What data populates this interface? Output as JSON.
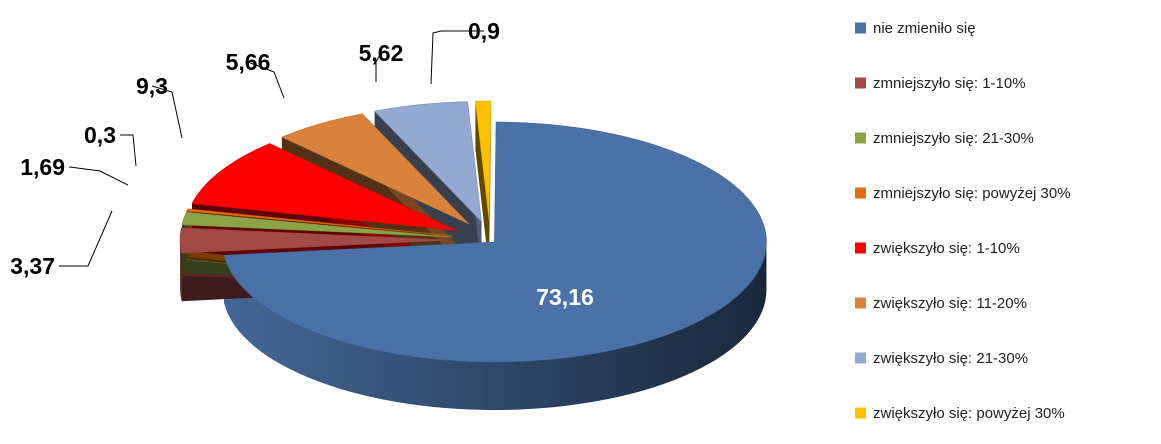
{
  "chart_data": {
    "type": "pie",
    "variant": "3d-exploded",
    "title": "",
    "legend_position": "right",
    "slices": [
      {
        "label": "nie zmieniło się",
        "value": 73.16,
        "display": "73,16",
        "color": "#4A72A8"
      },
      {
        "label": "zmniejszyło się: 1-10%",
        "value": 3.37,
        "display": "3,37",
        "color": "#A34A47"
      },
      {
        "label": "zmniejszyło się: 21-30%",
        "value": 1.69,
        "display": "1,69",
        "color": "#8BA445"
      },
      {
        "label": "zmniejszyło się: powyżej 30%",
        "value": 0.3,
        "display": "0,3",
        "color": "#E36C0A"
      },
      {
        "label": "zwiększyło się: 1-10%",
        "value": 9.3,
        "display": "9,3",
        "color": "#FF0000"
      },
      {
        "label": "zwiększyło się: 11-20%",
        "value": 5.66,
        "display": "5,66",
        "color": "#D9823B"
      },
      {
        "label": "zwiększyło się: 21-30%",
        "value": 5.62,
        "display": "5,62",
        "color": "#94A9D2"
      },
      {
        "label": "zwiększyło się: powyżej 30%",
        "value": 0.9,
        "display": "0,9",
        "color": "#FFC000"
      }
    ]
  }
}
